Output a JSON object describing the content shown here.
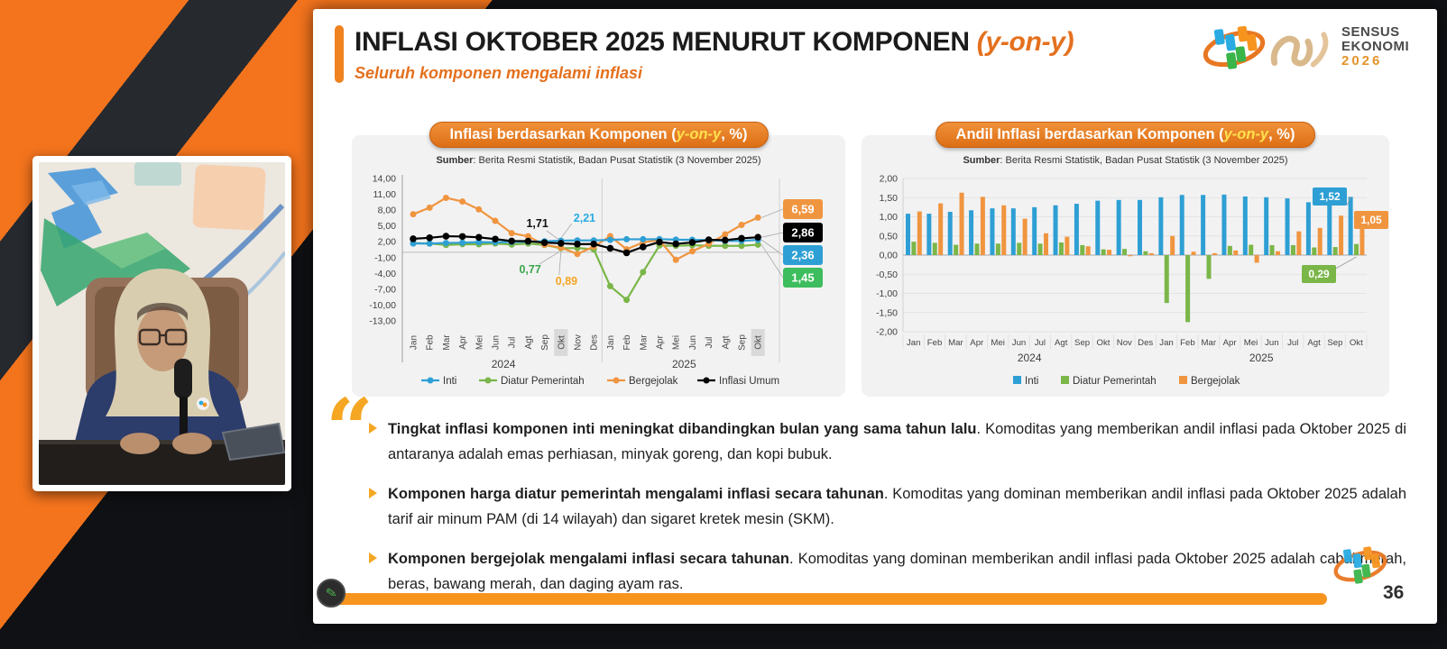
{
  "header": {
    "title": "INFLASI OKTOBER 2025 MENURUT KOMPONEN ",
    "title_suffix": "(y-on-y)",
    "subtitle": "Seluruh komponen mengalami inflasi"
  },
  "logos": {
    "sensus_line1": "SENSUS",
    "sensus_line2": "EKONOMI",
    "sensus_year": "2026"
  },
  "colors": {
    "accent_orange": "#E4701E",
    "bar_orange": "#F7941E",
    "inti": "#2E9FD4",
    "diatur_pemerintah": "#7AB648",
    "bergejolak": "#F0953F",
    "inflasi_umum": "#000000"
  },
  "chart_data": [
    {
      "type": "line",
      "title_prefix": "Inflasi berdasarkan Komponen (",
      "title_em": "y-on-y",
      "title_suffix": ", %)",
      "source_label": "Sumber",
      "source_rest": ": Berita Resmi Statistik, Badan Pusat Statistik (3 November 2025)",
      "categories": [
        "Jan",
        "Feb",
        "Mar",
        "Apr",
        "Mei",
        "Jun",
        "Jul",
        "Agt",
        "Sep",
        "Okt",
        "Nov",
        "Des",
        "Jan",
        "Feb",
        "Mar",
        "Apr",
        "Mei",
        "Jun",
        "Jul",
        "Agt",
        "Sep",
        "Okt"
      ],
      "year_groups": [
        {
          "label": "2024",
          "count": 12
        },
        {
          "label": "2025",
          "count": 10
        }
      ],
      "highlight_indices": [
        9,
        21
      ],
      "ylim": [
        -13,
        14
      ],
      "yticks_values": [
        14,
        11,
        8,
        5,
        2,
        -1,
        -4,
        -7,
        -10,
        -13
      ],
      "yticks_labels": [
        "14,00",
        "11,00",
        "8,00",
        "5,00",
        "2,00",
        "-1,00",
        "-4,00",
        "-7,00",
        "-10,00",
        "-13,00"
      ],
      "series": [
        {
          "name": "Inti",
          "color": "#2E9FD4",
          "values": [
            1.68,
            1.68,
            1.77,
            1.82,
            1.93,
            1.9,
            1.95,
            2.02,
            2.09,
            2.21,
            2.26,
            2.26,
            2.36,
            2.48,
            2.48,
            2.5,
            2.4,
            2.37,
            2.32,
            2.17,
            2.18,
            2.36
          ]
        },
        {
          "name": "Diatur Pemerintah",
          "color": "#7AB648",
          "values": [
            1.74,
            1.67,
            1.39,
            1.54,
            1.52,
            1.68,
            1.47,
            1.68,
            1.4,
            0.77,
            0.82,
            0.56,
            -6.41,
            -9.02,
            -3.75,
            1.28,
            1.24,
            1.34,
            1.25,
            1.22,
            1.22,
            1.45
          ]
        },
        {
          "name": "Bergejolak",
          "color": "#F0953F",
          "values": [
            7.22,
            8.47,
            10.33,
            9.63,
            8.14,
            5.96,
            3.63,
            3.04,
            1.43,
            0.89,
            -0.32,
            1.07,
            3.07,
            0.56,
            1.9,
            2.3,
            -1.42,
            0.2,
            1.6,
            3.4,
            5.2,
            6.59
          ]
        },
        {
          "name": "Inflasi Umum",
          "color": "#000000",
          "values": [
            2.57,
            2.75,
            3.05,
            3.0,
            2.84,
            2.51,
            2.13,
            2.12,
            1.84,
            1.71,
            1.55,
            1.57,
            0.76,
            -0.09,
            1.03,
            1.95,
            1.6,
            1.87,
            2.37,
            2.31,
            2.65,
            2.86
          ]
        }
      ],
      "annotations": [
        {
          "text": "1,71",
          "color": "#111111"
        },
        {
          "text": "2,21",
          "color": "#29ABE2"
        },
        {
          "text": "0,77",
          "color": "#3BA54A"
        },
        {
          "text": "0,89",
          "color": "#F5A623"
        }
      ],
      "end_labels": [
        {
          "text": "6,59",
          "bg": "#F0953F"
        },
        {
          "text": "2,86",
          "bg": "#000000"
        },
        {
          "text": "2,36",
          "bg": "#2E9FD4"
        },
        {
          "text": "1,45",
          "bg": "#3DBD5D"
        }
      ]
    },
    {
      "type": "bar",
      "title_prefix": "Andil Inflasi berdasarkan Komponen (",
      "title_em": "y-on-y",
      "title_suffix": ", %)",
      "source_label": "Sumber",
      "source_rest": ": Berita Resmi Statistik, Badan Pusat Statistik (3 November 2025)",
      "categories": [
        "Jan",
        "Feb",
        "Mar",
        "Apr",
        "Mei",
        "Jun",
        "Jul",
        "Agt",
        "Sep",
        "Okt",
        "Nov",
        "Des",
        "Jan",
        "Feb",
        "Mar",
        "Apr",
        "Mei",
        "Jun",
        "Jul",
        "Agt",
        "Sep",
        "Okt"
      ],
      "year_groups": [
        {
          "label": "2024",
          "count": 12
        },
        {
          "label": "2025",
          "count": 10
        }
      ],
      "ylim": [
        -2,
        2
      ],
      "yticks_values": [
        2,
        1.5,
        1,
        0.5,
        0,
        -0.5,
        -1,
        -1.5,
        -2
      ],
      "yticks_labels": [
        "2,00",
        "1,50",
        "1,00",
        "0,50",
        "0,00",
        "-0,50",
        "-1,00",
        "-1,50",
        "-2,00"
      ],
      "series": [
        {
          "name": "Inti",
          "color": "#2E9FD4",
          "values": [
            1.08,
            1.08,
            1.13,
            1.17,
            1.22,
            1.22,
            1.25,
            1.3,
            1.34,
            1.42,
            1.44,
            1.44,
            1.51,
            1.57,
            1.57,
            1.58,
            1.53,
            1.51,
            1.48,
            1.38,
            1.39,
            1.52
          ]
        },
        {
          "name": "Diatur Pemerintah",
          "color": "#7AB648",
          "values": [
            0.35,
            0.32,
            0.27,
            0.3,
            0.3,
            0.32,
            0.3,
            0.33,
            0.26,
            0.15,
            0.16,
            0.1,
            -1.25,
            -1.75,
            -0.62,
            0.24,
            0.27,
            0.26,
            0.26,
            0.2,
            0.21,
            0.29
          ]
        },
        {
          "name": "Bergejolak",
          "color": "#F0953F",
          "values": [
            1.14,
            1.35,
            1.63,
            1.52,
            1.3,
            0.95,
            0.57,
            0.48,
            0.23,
            0.14,
            -0.03,
            0.05,
            0.5,
            0.09,
            0.05,
            0.12,
            -0.2,
            0.1,
            0.62,
            0.71,
            1.03,
            1.05
          ]
        }
      ],
      "value_labels": [
        {
          "text": "1,52",
          "bg": "#2E9FD4"
        },
        {
          "text": "1,05",
          "bg": "#F0953F"
        },
        {
          "text": "0,29",
          "bg": "#7AB648"
        }
      ]
    }
  ],
  "quote_section": {
    "bullets": [
      {
        "bold": "Tingkat inflasi komponen inti meningkat dibandingkan bulan yang sama tahun lalu",
        "rest": ". Komoditas yang memberikan andil inflasi pada Oktober 2025 di antaranya adalah emas perhiasan, minyak goreng, dan kopi bubuk."
      },
      {
        "bold": "Komponen harga diatur pemerintah mengalami inflasi secara tahunan",
        "rest": ". Komoditas yang dominan memberikan andil inflasi pada Oktober 2025 adalah tarif air minum PAM (di 14 wilayah) dan sigaret kretek mesin (SKM)."
      },
      {
        "bold": "Komponen bergejolak mengalami inflasi secara tahunan",
        "rest": ". Komoditas yang dominan memberikan andil inflasi pada Oktober 2025 adalah cabai merah, beras, bawang merah, dan daging ayam ras."
      }
    ]
  },
  "footer": {
    "page_number": "36"
  }
}
